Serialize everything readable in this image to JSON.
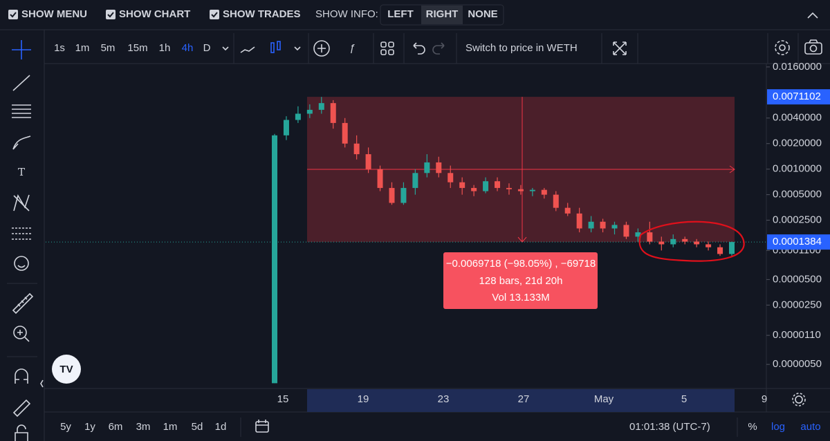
{
  "top_bar": {
    "toggles": [
      "SHOW MENU",
      "SHOW CHART",
      "SHOW TRADES"
    ],
    "info_label": "SHOW INFO:",
    "info_options": [
      "LEFT",
      "RIGHT",
      "NONE"
    ]
  },
  "toolbar": {
    "intervals": [
      "1s",
      "1m",
      "5m",
      "15m",
      "1h",
      "4h",
      "D"
    ],
    "switch_label": "Switch to price in WETH"
  },
  "chart_data": {
    "type": "candlestick",
    "log_scale": true,
    "up_color": "#26a69a",
    "down_color": "#ef5350",
    "ylim": [
      2.7e-06,
      0.0182
    ],
    "yticks": [
      {
        "value": 0.016,
        "label": "0.0160000"
      },
      {
        "value": 0.004,
        "label": "0.0040000"
      },
      {
        "value": 0.002,
        "label": "0.0020000"
      },
      {
        "value": 0.001,
        "label": "0.0010000"
      },
      {
        "value": 0.0005,
        "label": "0.0005000"
      },
      {
        "value": 0.00025,
        "label": "0.0002500"
      },
      {
        "value": 0.00011,
        "label": "0.0001100"
      },
      {
        "value": 5e-05,
        "label": "0.0000500"
      },
      {
        "value": 2.5e-05,
        "label": "0.0000250"
      },
      {
        "value": 1.1e-05,
        "label": "0.0000110"
      },
      {
        "value": 5e-06,
        "label": "0.0000050"
      }
    ],
    "xaxis_labels": [
      "15",
      "19",
      "23",
      "27",
      "May",
      "5",
      "9"
    ],
    "open": [
      3e-06,
      0.0025,
      0.0038,
      0.0045,
      0.005,
      0.006,
      0.0035,
      0.002,
      0.0015,
      0.001,
      0.0006,
      0.0004,
      0.0006,
      0.0009,
      0.0012,
      0.0009,
      0.0007,
      0.0006,
      0.00055,
      0.00072,
      0.0006,
      0.00058,
      0.00055,
      0.00057,
      0.0005,
      0.00035,
      0.0003,
      0.0002,
      0.00024,
      0.0002,
      0.00022,
      0.00016,
      0.00018,
      0.00014,
      0.00013,
      0.00015,
      0.00014,
      0.00013,
      0.00012,
      0.0001
    ],
    "high": [
      0.0026,
      0.0042,
      0.0055,
      0.0058,
      0.0071,
      0.0065,
      0.004,
      0.0025,
      0.0018,
      0.0011,
      0.0007,
      0.0007,
      0.001,
      0.0015,
      0.0014,
      0.0011,
      0.0008,
      0.00065,
      0.0008,
      0.0008,
      0.00068,
      0.00065,
      0.0006,
      0.0006,
      0.00055,
      0.0004,
      0.00035,
      0.00028,
      0.00026,
      0.00024,
      0.00024,
      0.0002,
      0.00024,
      0.00016,
      0.00017,
      0.00016,
      0.00015,
      0.00014,
      0.00013,
      0.00014
    ],
    "low": [
      3e-06,
      0.0022,
      0.0035,
      0.004,
      0.0045,
      0.003,
      0.0018,
      0.0013,
      0.0009,
      0.00055,
      0.00038,
      0.00038,
      0.0005,
      0.0008,
      0.0008,
      0.0006,
      0.0005,
      0.00048,
      0.00052,
      0.00055,
      0.0005,
      0.0005,
      0.00048,
      0.00045,
      0.00032,
      0.00028,
      0.00018,
      0.00018,
      0.00018,
      0.00017,
      0.00015,
      0.00014,
      0.00013,
      0.00011,
      0.00012,
      0.00013,
      0.00012,
      0.00011,
      9.5e-05,
      9.5e-05
    ],
    "close": [
      0.0025,
      0.0038,
      0.0045,
      0.005,
      0.006,
      0.0035,
      0.002,
      0.0015,
      0.001,
      0.0006,
      0.0004,
      0.0006,
      0.0009,
      0.0012,
      0.0009,
      0.0007,
      0.0006,
      0.00055,
      0.00072,
      0.0006,
      0.00058,
      0.00055,
      0.00057,
      0.0005,
      0.00035,
      0.0003,
      0.0002,
      0.00024,
      0.0002,
      0.00022,
      0.00016,
      0.00018,
      0.00014,
      0.00013,
      0.00015,
      0.00014,
      0.00013,
      0.00012,
      0.0001,
      0.0001384
    ],
    "measure_top": {
      "value": 0.0071102,
      "label": "0.0071102"
    },
    "last_price": {
      "value": 0.0001384,
      "label": "0.0001384"
    },
    "measure": {
      "lines": [
        "−0.0069718 (−98.05%) , −69718",
        "128 bars, 21d 20h",
        "Vol 13.133M"
      ]
    }
  },
  "bottom_bar": {
    "ranges": [
      "5y",
      "1y",
      "6m",
      "3m",
      "1m",
      "5d",
      "1d"
    ],
    "clock": "01:01:38 (UTC-7)",
    "options": [
      "%",
      "log",
      "auto"
    ]
  }
}
